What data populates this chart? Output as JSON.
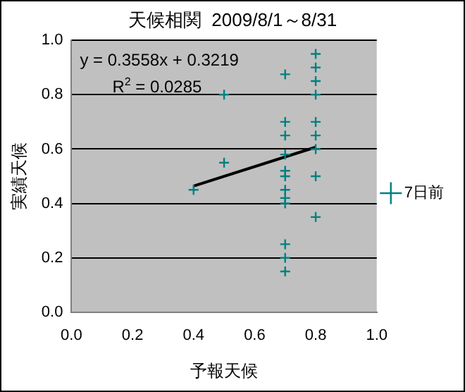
{
  "chart_data": {
    "type": "scatter",
    "title": "天候相関  2009/8/1～8/31",
    "xlabel": "予報天候",
    "ylabel": "実績天候",
    "series": [
      {
        "name": "7日前",
        "color": "#008080",
        "marker": "cross",
        "x": [
          0.8,
          0.8,
          0.8,
          0.8,
          0.8,
          0.8,
          0.8,
          0.8,
          0.8,
          0.7,
          0.7,
          0.7,
          0.7,
          0.7,
          0.7,
          0.7,
          0.7,
          0.7,
          0.7,
          0.7,
          0.7,
          0.5,
          0.5,
          0.4
        ],
        "values": [
          0.95,
          0.9,
          0.85,
          0.8,
          0.7,
          0.65,
          0.6,
          0.5,
          0.35,
          0.875,
          0.7,
          0.65,
          0.58,
          0.52,
          0.5,
          0.45,
          0.42,
          0.4,
          0.25,
          0.2,
          0.15,
          0.8,
          0.55,
          0.45
        ]
      },
      {
        "type": "line",
        "color": "#000000",
        "marker": "none",
        "x": [
          0.4,
          0.8
        ],
        "values": [
          0.464,
          0.607
        ]
      }
    ],
    "annotations": [
      "y = 0.3558x + 0.3219",
      "R$^{2}$ = 0.0285"
    ],
    "xlim": [
      0,
      1
    ],
    "ylim": [
      0,
      1
    ],
    "xticks": [
      {
        "value": 0,
        "label": "0.0"
      },
      {
        "value": 0.2,
        "label": "0.2"
      },
      {
        "value": 0.4,
        "label": "0.4"
      },
      {
        "value": 0.6,
        "label": "0.6"
      },
      {
        "value": 0.8,
        "label": "0.8"
      },
      {
        "value": 1,
        "label": "1.0"
      }
    ],
    "yticks": [
      {
        "value": 0,
        "label": "0.0"
      },
      {
        "value": 0.2,
        "label": "0.2"
      },
      {
        "value": 0.4,
        "label": "0.4"
      },
      {
        "value": 0.6,
        "label": "0.6"
      },
      {
        "value": 0.8,
        "label": "0.8"
      },
      {
        "value": 1,
        "label": "1.0"
      }
    ],
    "grid": "y",
    "legend": "right"
  }
}
